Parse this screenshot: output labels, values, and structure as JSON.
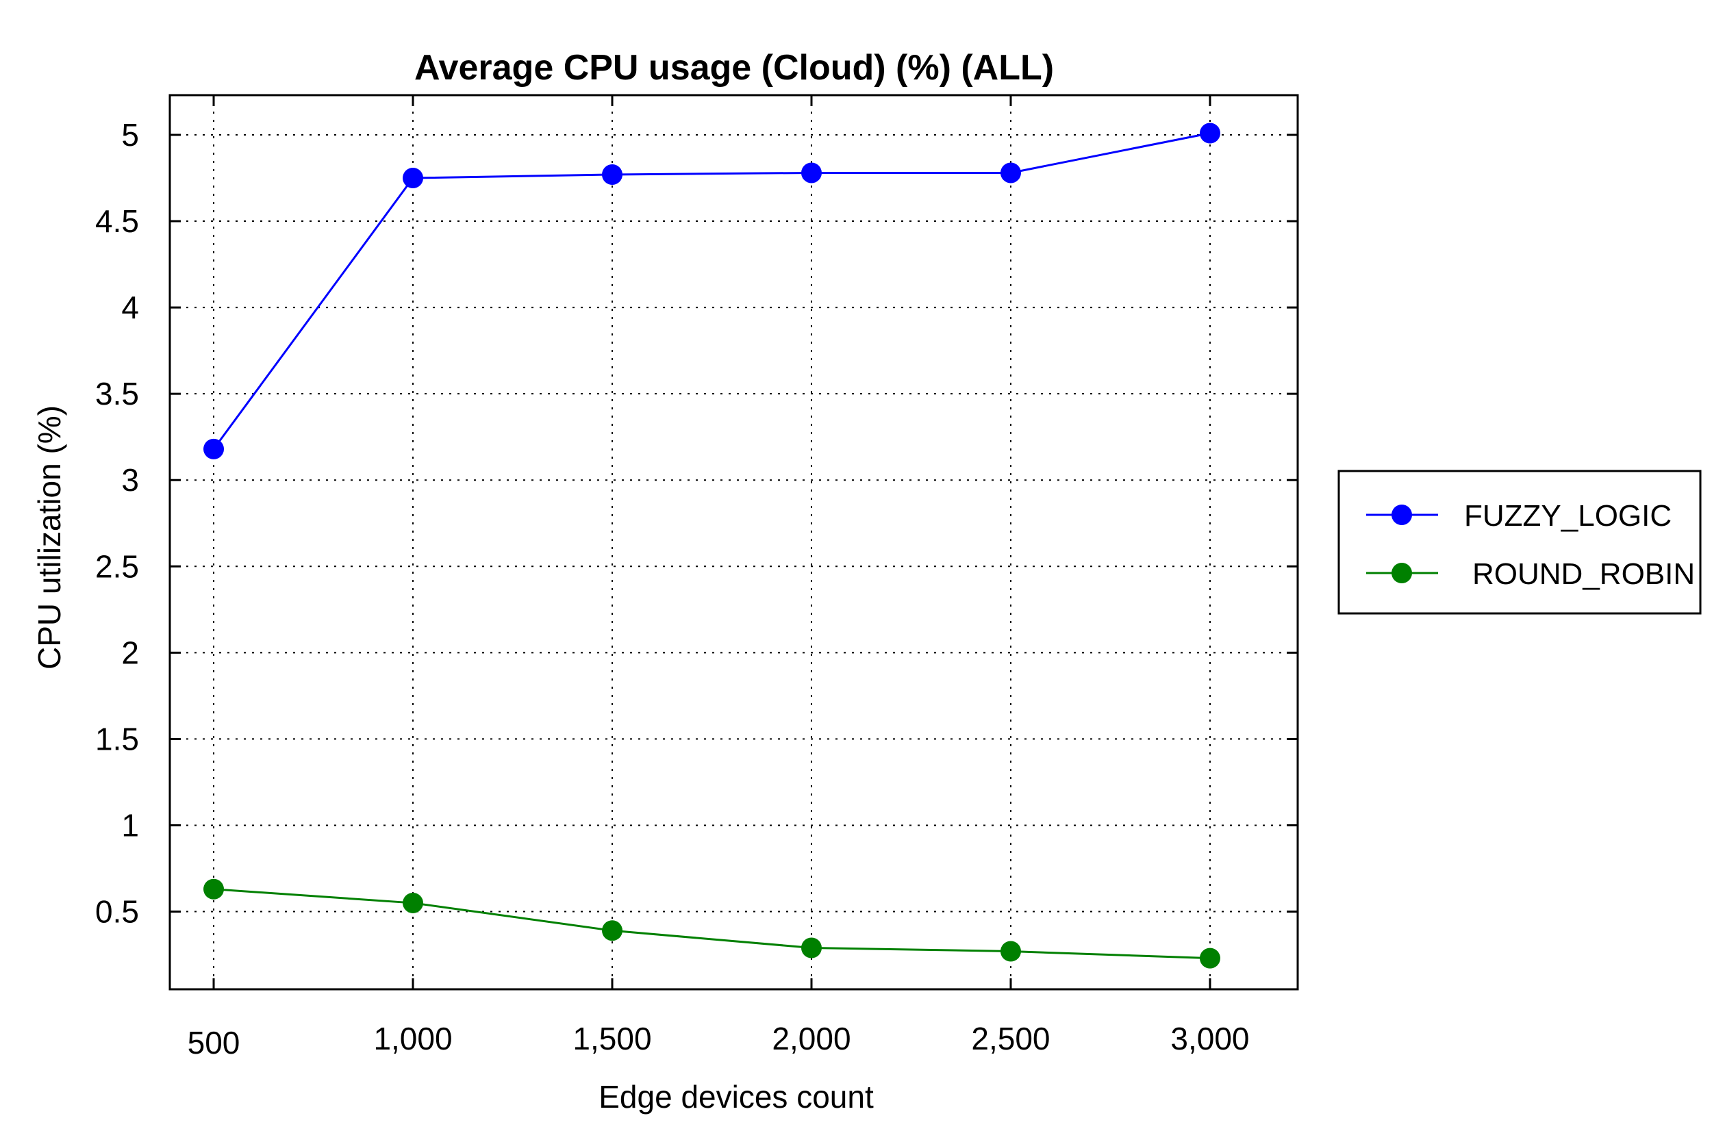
{
  "chart_data": {
    "type": "line",
    "title": "Average CPU usage (Cloud) (%) (ALL)",
    "xlabel": "Edge devices count",
    "ylabel": "CPU utilization (%)",
    "x": [
      500,
      1000,
      1500,
      2000,
      2500,
      3000
    ],
    "x_tick_labels": [
      "500",
      "1,000",
      "1,500",
      "2,000",
      "2,500",
      "3,000"
    ],
    "y_ticks": [
      0.5,
      1,
      1.5,
      2,
      2.5,
      3,
      3.5,
      4,
      4.5,
      5
    ],
    "y_tick_labels": [
      "0.5",
      "1",
      "1.5",
      "2",
      "2.5",
      "3",
      "3.5",
      "4",
      "4.5",
      "5"
    ],
    "xlim": [
      390,
      3220
    ],
    "ylim": [
      0.05,
      5.23
    ],
    "grid": true,
    "legend_position": "right, outside plot",
    "series": [
      {
        "name": "FUZZY_LOGIC",
        "color": "#0000ff",
        "marker": "circle",
        "values": [
          3.18,
          4.75,
          4.77,
          4.78,
          4.78,
          5.01
        ]
      },
      {
        "name": "ROUND_ROBIN",
        "color": "#008000",
        "marker": "circle",
        "values": [
          0.63,
          0.55,
          0.39,
          0.29,
          0.27,
          0.23
        ]
      }
    ]
  }
}
